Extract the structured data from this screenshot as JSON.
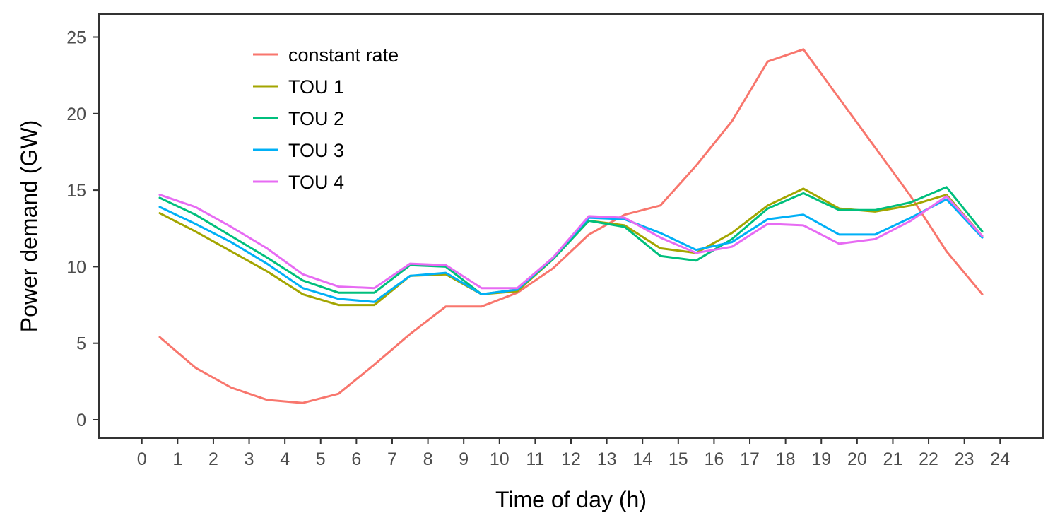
{
  "chart_data": {
    "type": "line",
    "xlabel": "Time of day (h)",
    "ylabel": "Power demand (GW)",
    "xlim": [
      -1.2,
      25.2
    ],
    "ylim": [
      -1.2,
      26.5
    ],
    "x_ticks": [
      0,
      1,
      2,
      3,
      4,
      5,
      6,
      7,
      8,
      9,
      10,
      11,
      12,
      13,
      14,
      15,
      16,
      17,
      18,
      19,
      20,
      21,
      22,
      23,
      24
    ],
    "y_ticks": [
      0,
      5,
      10,
      15,
      20,
      25
    ],
    "grid": false,
    "legend_position": "top-left",
    "x": [
      0.5,
      1.5,
      2.5,
      3.5,
      4.5,
      5.5,
      6.5,
      7.5,
      8.5,
      9.5,
      10.5,
      11.5,
      12.5,
      13.5,
      14.5,
      15.5,
      16.5,
      17.5,
      18.5,
      19.5,
      20.5,
      21.5,
      22.5,
      23.5
    ],
    "series": [
      {
        "name": "constant rate",
        "color": "#F8766D",
        "values": [
          5.4,
          3.4,
          2.1,
          1.3,
          1.1,
          1.7,
          3.6,
          5.6,
          7.4,
          7.4,
          8.3,
          9.9,
          12.1,
          13.4,
          14.0,
          16.6,
          19.5,
          23.4,
          24.2,
          21.0,
          17.8,
          14.6,
          11.0,
          8.2
        ]
      },
      {
        "name": "TOU 1",
        "color": "#A3A500",
        "values": [
          13.5,
          12.3,
          11.0,
          9.7,
          8.2,
          7.5,
          7.5,
          9.4,
          9.5,
          8.2,
          8.4,
          10.5,
          13.0,
          12.7,
          11.2,
          10.9,
          12.2,
          14.0,
          15.1,
          13.8,
          13.6,
          14.0,
          14.7,
          12.0
        ]
      },
      {
        "name": "TOU 2",
        "color": "#00BF7D",
        "values": [
          14.5,
          13.4,
          12.0,
          10.6,
          9.1,
          8.3,
          8.3,
          10.1,
          10.0,
          8.2,
          8.5,
          10.5,
          13.0,
          12.6,
          10.7,
          10.4,
          11.8,
          13.8,
          14.8,
          13.7,
          13.7,
          14.2,
          15.2,
          12.3
        ]
      },
      {
        "name": "TOU 3",
        "color": "#00B0F6",
        "values": [
          13.9,
          12.8,
          11.6,
          10.2,
          8.6,
          7.9,
          7.7,
          9.4,
          9.6,
          8.2,
          8.5,
          10.6,
          13.2,
          13.1,
          12.2,
          11.1,
          11.6,
          13.1,
          13.4,
          12.1,
          12.1,
          13.2,
          14.4,
          11.9
        ]
      },
      {
        "name": "TOU 4",
        "color": "#E76BF3",
        "values": [
          14.7,
          13.9,
          12.6,
          11.2,
          9.5,
          8.7,
          8.6,
          10.2,
          10.1,
          8.6,
          8.6,
          10.6,
          13.3,
          13.2,
          11.9,
          10.9,
          11.3,
          12.8,
          12.7,
          11.5,
          11.8,
          13.0,
          14.6,
          12.0
        ]
      }
    ]
  }
}
